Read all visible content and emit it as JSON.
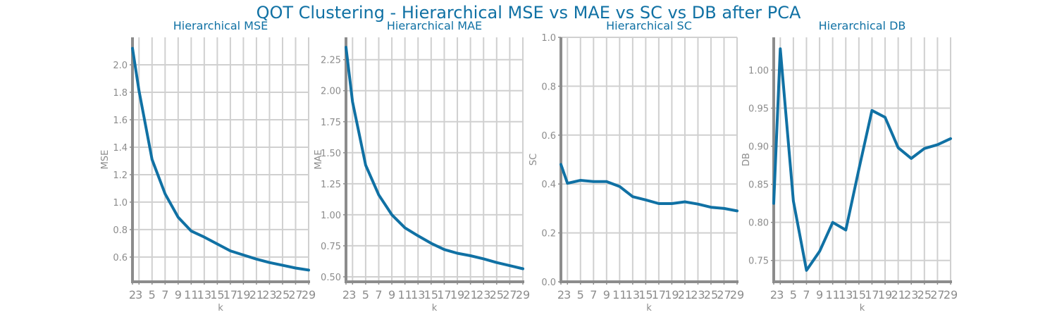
{
  "suptitle": "QOT Clustering - Hierarchical MSE vs MAE vs SC vs DB after PCA",
  "colors": {
    "line": "#1071a4",
    "title": "#1071a4",
    "grid": "#d0d0d0",
    "axis": "#8c8c8c",
    "text": "#8c8c8c"
  },
  "chart_data": [
    {
      "type": "line",
      "title": "Hierarchical MSE",
      "xlabel": "k",
      "ylabel": "MSE",
      "grid": true,
      "x": [
        2,
        3,
        5,
        7,
        9,
        11,
        13,
        15,
        17,
        19,
        21,
        23,
        25,
        27,
        29
      ],
      "y": [
        2.12,
        1.81,
        1.31,
        1.06,
        0.89,
        0.79,
        0.745,
        0.695,
        0.645,
        0.615,
        0.585,
        0.56,
        0.54,
        0.52,
        0.505
      ],
      "xlim": [
        2,
        29
      ],
      "ylim": [
        0.42,
        2.2
      ],
      "xticks": [
        2,
        3,
        5,
        7,
        9,
        11,
        13,
        15,
        17,
        19,
        21,
        23,
        25,
        27,
        29
      ],
      "yticks": [
        0.6,
        0.8,
        1.0,
        1.2,
        1.4,
        1.6,
        1.8,
        2.0
      ],
      "ytick_labels": [
        "0.6",
        "0.8",
        "1.0",
        "1.2",
        "1.4",
        "1.6",
        "1.8",
        "2.0"
      ]
    },
    {
      "type": "line",
      "title": "Hierarchical MAE",
      "xlabel": "k",
      "ylabel": "MAE",
      "grid": true,
      "x": [
        2,
        3,
        5,
        7,
        9,
        11,
        13,
        15,
        17,
        19,
        21,
        23,
        25,
        27,
        29
      ],
      "y": [
        2.35,
        1.91,
        1.4,
        1.16,
        1.0,
        0.895,
        0.83,
        0.77,
        0.72,
        0.69,
        0.67,
        0.645,
        0.615,
        0.59,
        0.565
      ],
      "xlim": [
        2,
        29
      ],
      "ylim": [
        0.46,
        2.43
      ],
      "xticks": [
        2,
        3,
        5,
        7,
        9,
        11,
        13,
        15,
        17,
        19,
        21,
        23,
        25,
        27,
        29
      ],
      "yticks": [
        0.5,
        0.75,
        1.0,
        1.25,
        1.5,
        1.75,
        2.0,
        2.25
      ],
      "ytick_labels": [
        "0.50",
        "0.75",
        "1.00",
        "1.25",
        "1.50",
        "1.75",
        "2.00",
        "2.25"
      ]
    },
    {
      "type": "line",
      "title": "Hierarchical SC",
      "xlabel": "k",
      "ylabel": "SC",
      "grid": true,
      "x": [
        2,
        3,
        5,
        7,
        9,
        11,
        13,
        15,
        17,
        19,
        21,
        23,
        25,
        27,
        29
      ],
      "y": [
        0.48,
        0.403,
        0.415,
        0.41,
        0.41,
        0.39,
        0.348,
        0.335,
        0.32,
        0.32,
        0.327,
        0.318,
        0.305,
        0.3,
        0.29
      ],
      "xlim": [
        2,
        29
      ],
      "ylim": [
        0.0,
        1.0
      ],
      "xticks": [
        2,
        3,
        5,
        7,
        9,
        11,
        13,
        15,
        17,
        19,
        21,
        23,
        25,
        27,
        29
      ],
      "yticks": [
        0.0,
        0.2,
        0.4,
        0.6,
        0.8,
        1.0
      ],
      "ytick_labels": [
        "0.0",
        "0.2",
        "0.4",
        "0.6",
        "0.8",
        "1.0"
      ]
    },
    {
      "type": "line",
      "title": "Hierarchical DB",
      "xlabel": "k",
      "ylabel": "DB",
      "grid": true,
      "x": [
        2,
        3,
        5,
        7,
        9,
        11,
        13,
        15,
        17,
        19,
        21,
        23,
        25,
        27,
        29
      ],
      "y": [
        0.825,
        1.028,
        0.828,
        0.737,
        0.762,
        0.8,
        0.79,
        0.87,
        0.947,
        0.938,
        0.898,
        0.884,
        0.897,
        0.902,
        0.91
      ],
      "xlim": [
        2,
        29
      ],
      "ylim": [
        0.722,
        1.043
      ],
      "xticks": [
        2,
        3,
        5,
        7,
        9,
        11,
        13,
        15,
        17,
        19,
        21,
        23,
        25,
        27,
        29
      ],
      "yticks": [
        0.75,
        0.8,
        0.85,
        0.9,
        0.95,
        1.0
      ],
      "ytick_labels": [
        "0.75",
        "0.80",
        "0.85",
        "0.90",
        "0.95",
        "1.00"
      ]
    }
  ]
}
